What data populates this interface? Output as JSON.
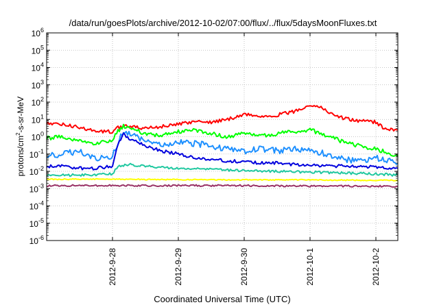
{
  "chart_data": {
    "type": "line",
    "title": "/data/run/goesPlots/archive/2012-10-02/07:00/flux/../flux/5daysMoonFluxes.txt",
    "xlabel": "Coordinated Universal Time (UTC)",
    "ylabel": {
      "prefix": "protons/cm",
      "exponent": "2",
      "suffix": "-s-sr-MeV"
    },
    "y_scale": "log",
    "ylim": [
      1e-06,
      1000000.0
    ],
    "y_ticks": [
      {
        "base": "10",
        "exp": "-6",
        "value": 1e-06
      },
      {
        "base": "10",
        "exp": "-5",
        "value": 1e-05
      },
      {
        "base": "10",
        "exp": "-4",
        "value": 0.0001
      },
      {
        "base": "10",
        "exp": "-3",
        "value": 0.001
      },
      {
        "base": "10",
        "exp": "-2",
        "value": 0.01
      },
      {
        "base": "10",
        "exp": "-1",
        "value": 0.1
      },
      {
        "base": "10",
        "exp": "0",
        "value": 1
      },
      {
        "base": "10",
        "exp": "1",
        "value": 10
      },
      {
        "base": "10",
        "exp": "2",
        "value": 100
      },
      {
        "base": "10",
        "exp": "3",
        "value": 1000
      },
      {
        "base": "10",
        "exp": "4",
        "value": 10000
      },
      {
        "base": "10",
        "exp": "5",
        "value": 100000
      },
      {
        "base": "10",
        "exp": "6",
        "value": 1000000
      }
    ],
    "xlim": [
      "2012-09-27 00:00",
      "2012-10-02 08:00"
    ],
    "x_ticks": [
      {
        "label": "2012-9-28",
        "date": "2012-09-28 00:00"
      },
      {
        "label": "2012-9-29",
        "date": "2012-09-29 00:00"
      },
      {
        "label": "2012-9-30",
        "date": "2012-09-30 00:00"
      },
      {
        "label": "2012-10-1",
        "date": "2012-10-01 00:00"
      },
      {
        "label": "2012-10-2",
        "date": "2012-10-02 00:00"
      }
    ],
    "grid": true,
    "legend": "none",
    "series": [
      {
        "color": "#ff0000",
        "points": [
          [
            "2012-09-27 00:00",
            6
          ],
          [
            "2012-09-27 06:00",
            5
          ],
          [
            "2012-09-27 12:00",
            3.5
          ],
          [
            "2012-09-27 18:00",
            2
          ],
          [
            "2012-09-28 00:00",
            2
          ],
          [
            "2012-09-28 02:00",
            3.5
          ],
          [
            "2012-09-28 04:00",
            4
          ],
          [
            "2012-09-28 08:00",
            3.5
          ],
          [
            "2012-09-28 12:00",
            3
          ],
          [
            "2012-09-28 18:00",
            4
          ],
          [
            "2012-09-29 00:00",
            5
          ],
          [
            "2012-09-29 06:00",
            8
          ],
          [
            "2012-09-29 12:00",
            7
          ],
          [
            "2012-09-29 18:00",
            10
          ],
          [
            "2012-09-30 00:00",
            20
          ],
          [
            "2012-09-30 06:00",
            15
          ],
          [
            "2012-09-30 12:00",
            18
          ],
          [
            "2012-09-30 18:00",
            28
          ],
          [
            "2012-10-01 00:00",
            70
          ],
          [
            "2012-10-01 04:00",
            50
          ],
          [
            "2012-10-01 08:00",
            20
          ],
          [
            "2012-10-01 12:00",
            12
          ],
          [
            "2012-10-01 18:00",
            8
          ],
          [
            "2012-10-02 00:00",
            7
          ],
          [
            "2012-10-02 03:00",
            3
          ],
          [
            "2012-10-02 08:00",
            2.5
          ]
        ]
      },
      {
        "color": "#00ff00",
        "points": [
          [
            "2012-09-27 00:00",
            0.8
          ],
          [
            "2012-09-27 06:00",
            1.0
          ],
          [
            "2012-09-27 12:00",
            0.6
          ],
          [
            "2012-09-27 18:00",
            0.4
          ],
          [
            "2012-09-28 00:00",
            0.7
          ],
          [
            "2012-09-28 02:00",
            2
          ],
          [
            "2012-09-28 04:00",
            4
          ],
          [
            "2012-09-28 08:00",
            2.5
          ],
          [
            "2012-09-28 12:00",
            1.5
          ],
          [
            "2012-09-28 18:00",
            1.2
          ],
          [
            "2012-09-29 00:00",
            2
          ],
          [
            "2012-09-29 06:00",
            2.5
          ],
          [
            "2012-09-29 12:00",
            1.5
          ],
          [
            "2012-09-29 18:00",
            1.0
          ],
          [
            "2012-09-30 00:00",
            1.5
          ],
          [
            "2012-09-30 06:00",
            1.2
          ],
          [
            "2012-09-30 12:00",
            1.5
          ],
          [
            "2012-09-30 18:00",
            2
          ],
          [
            "2012-10-01 00:00",
            2.5
          ],
          [
            "2012-10-01 06:00",
            1.2
          ],
          [
            "2012-10-01 12:00",
            0.5
          ],
          [
            "2012-10-01 18:00",
            0.3
          ],
          [
            "2012-10-02 00:00",
            0.2
          ],
          [
            "2012-10-02 08:00",
            0.07
          ]
        ]
      },
      {
        "color": "#1e90ff",
        "points": [
          [
            "2012-09-27 00:00",
            0.08
          ],
          [
            "2012-09-27 06:00",
            0.1
          ],
          [
            "2012-09-27 12:00",
            0.15
          ],
          [
            "2012-09-27 18:00",
            0.06
          ],
          [
            "2012-09-28 00:00",
            0.08
          ],
          [
            "2012-09-28 02:00",
            0.5
          ],
          [
            "2012-09-28 04:00",
            2
          ],
          [
            "2012-09-28 08:00",
            1
          ],
          [
            "2012-09-28 12:00",
            0.5
          ],
          [
            "2012-09-28 18:00",
            0.3
          ],
          [
            "2012-09-29 00:00",
            0.5
          ],
          [
            "2012-09-29 06:00",
            0.4
          ],
          [
            "2012-09-29 12:00",
            0.3
          ],
          [
            "2012-09-29 18:00",
            0.2
          ],
          [
            "2012-09-30 00:00",
            0.15
          ],
          [
            "2012-09-30 06:00",
            0.2
          ],
          [
            "2012-09-30 12:00",
            0.15
          ],
          [
            "2012-09-30 18:00",
            0.2
          ],
          [
            "2012-10-01 00:00",
            0.15
          ],
          [
            "2012-10-01 06:00",
            0.1
          ],
          [
            "2012-10-01 12:00",
            0.05
          ],
          [
            "2012-10-01 18:00",
            0.04
          ],
          [
            "2012-10-02 00:00",
            0.06
          ],
          [
            "2012-10-02 08:00",
            0.03
          ]
        ]
      },
      {
        "color": "#0000dd",
        "points": [
          [
            "2012-09-27 00:00",
            0.02
          ],
          [
            "2012-09-27 06:00",
            0.02
          ],
          [
            "2012-09-27 12:00",
            0.015
          ],
          [
            "2012-09-27 18:00",
            0.015
          ],
          [
            "2012-09-28 00:00",
            0.02
          ],
          [
            "2012-09-28 02:00",
            0.4
          ],
          [
            "2012-09-28 04:00",
            1.5
          ],
          [
            "2012-09-28 06:00",
            0.8
          ],
          [
            "2012-09-28 12:00",
            0.3
          ],
          [
            "2012-09-28 18:00",
            0.15
          ],
          [
            "2012-09-29 00:00",
            0.1
          ],
          [
            "2012-09-29 06:00",
            0.06
          ],
          [
            "2012-09-29 12:00",
            0.05
          ],
          [
            "2012-09-29 18:00",
            0.04
          ],
          [
            "2012-09-30 00:00",
            0.035
          ],
          [
            "2012-09-30 06:00",
            0.03
          ],
          [
            "2012-09-30 12:00",
            0.03
          ],
          [
            "2012-09-30 18:00",
            0.025
          ],
          [
            "2012-10-01 00:00",
            0.025
          ],
          [
            "2012-10-01 06:00",
            0.02
          ],
          [
            "2012-10-01 12:00",
            0.02
          ],
          [
            "2012-10-01 18:00",
            0.018
          ],
          [
            "2012-10-02 00:00",
            0.018
          ],
          [
            "2012-10-02 08:00",
            0.015
          ]
        ]
      },
      {
        "color": "#20c8a0",
        "points": [
          [
            "2012-09-27 00:00",
            0.006
          ],
          [
            "2012-09-27 12:00",
            0.006
          ],
          [
            "2012-09-28 00:00",
            0.007
          ],
          [
            "2012-09-28 02:00",
            0.02
          ],
          [
            "2012-09-28 06:00",
            0.025
          ],
          [
            "2012-09-28 12:00",
            0.02
          ],
          [
            "2012-09-29 00:00",
            0.015
          ],
          [
            "2012-09-29 12:00",
            0.013
          ],
          [
            "2012-09-30 00:00",
            0.011
          ],
          [
            "2012-09-30 12:00",
            0.01
          ],
          [
            "2012-10-01 00:00",
            0.009
          ],
          [
            "2012-10-01 12:00",
            0.008
          ],
          [
            "2012-10-02 00:00",
            0.007
          ],
          [
            "2012-10-02 08:00",
            0.006
          ]
        ]
      },
      {
        "color": "#ffff00",
        "points": [
          [
            "2012-09-27 00:00",
            0.0035
          ],
          [
            "2012-09-28 00:00",
            0.0035
          ],
          [
            "2012-09-29 00:00",
            0.0033
          ],
          [
            "2012-09-30 00:00",
            0.0032
          ],
          [
            "2012-10-01 00:00",
            0.0032
          ],
          [
            "2012-10-02 00:00",
            0.003
          ],
          [
            "2012-10-02 08:00",
            0.003
          ]
        ]
      },
      {
        "color": "#993366",
        "points": [
          [
            "2012-09-27 00:00",
            0.0015
          ],
          [
            "2012-09-28 00:00",
            0.0015
          ],
          [
            "2012-09-29 00:00",
            0.0015
          ],
          [
            "2012-09-30 00:00",
            0.0015
          ],
          [
            "2012-10-01 00:00",
            0.0014
          ],
          [
            "2012-10-02 00:00",
            0.0014
          ],
          [
            "2012-10-02 08:00",
            0.0013
          ]
        ]
      }
    ]
  }
}
